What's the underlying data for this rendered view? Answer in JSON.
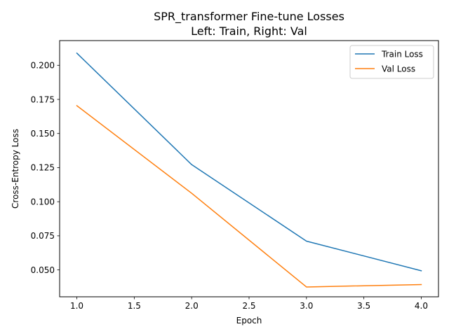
{
  "chart_data": {
    "type": "line",
    "title": "SPR_transformer Fine-tune Losses",
    "subtitle": "Left: Train, Right: Val",
    "xlabel": "Epoch",
    "ylabel": "Cross-Entropy Loss",
    "xlim": [
      0.85,
      4.15
    ],
    "ylim": [
      0.0303,
      0.2181
    ],
    "x_ticks": [
      1.0,
      1.5,
      2.0,
      2.5,
      3.0,
      3.5,
      4.0
    ],
    "x_tick_labels": [
      "1.0",
      "1.5",
      "2.0",
      "2.5",
      "3.0",
      "3.5",
      "4.0"
    ],
    "y_ticks": [
      0.05,
      0.075,
      0.1,
      0.125,
      0.15,
      0.175,
      0.2
    ],
    "y_tick_labels": [
      "0.050",
      "0.075",
      "0.100",
      "0.125",
      "0.150",
      "0.175",
      "0.200"
    ],
    "grid": false,
    "legend_position": "top-right",
    "series": [
      {
        "name": "Train Loss",
        "color": "#1f77b4",
        "x": [
          1,
          2,
          3,
          4
        ],
        "y": [
          0.2089,
          0.1272,
          0.0711,
          0.0494
        ]
      },
      {
        "name": "Val Loss",
        "color": "#ff7f0e",
        "x": [
          1,
          2,
          3,
          4
        ],
        "y": [
          0.1704,
          0.1062,
          0.0375,
          0.0393
        ]
      }
    ]
  }
}
